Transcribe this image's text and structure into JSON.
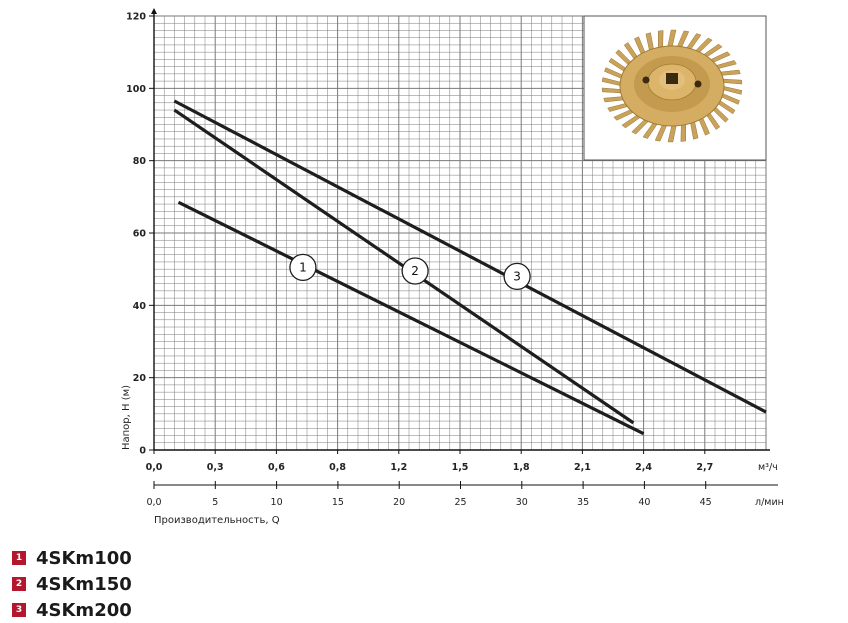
{
  "chart_data": {
    "type": "line",
    "ylabel": "Напор, H (м)",
    "xlabel": "Производительность, Q",
    "x_unit_top": "м³/ч",
    "x_unit_bottom": "л/мин",
    "ylim": [
      0,
      120
    ],
    "xlim": [
      0,
      3.0
    ],
    "y_ticks": [
      "0",
      "20",
      "40",
      "60",
      "80",
      "100",
      "120"
    ],
    "x_ticks_m3h": [
      "0,0",
      "0,3",
      "0,6",
      "0,8",
      "1,2",
      "1,5",
      "1,8",
      "2,1",
      "2,4",
      "2,7"
    ],
    "x_ticks_lmin": [
      "0,0",
      "5",
      "10",
      "15",
      "20",
      "25",
      "30",
      "35",
      "40",
      "45"
    ],
    "grid": true,
    "series": [
      {
        "name": "4SKm100",
        "marker": "1",
        "x": [
          0.12,
          2.4
        ],
        "y": [
          68.5,
          4.5
        ]
      },
      {
        "name": "4SKm150",
        "marker": "2",
        "x": [
          0.1,
          2.35
        ],
        "y": [
          94,
          7.5
        ]
      },
      {
        "name": "4SKm200",
        "marker": "3",
        "x": [
          0.1,
          3.0
        ],
        "y": [
          96.5,
          10.5
        ]
      }
    ],
    "marker_positions": [
      {
        "label": "1",
        "x": 0.73,
        "y": 50.5
      },
      {
        "label": "2",
        "x": 1.28,
        "y": 49.5
      },
      {
        "label": "3",
        "x": 1.78,
        "y": 48
      }
    ],
    "legend_placement": "bottom-left"
  },
  "legend": [
    {
      "num": "1",
      "label": "4SKm100"
    },
    {
      "num": "2",
      "label": "4SKm150"
    },
    {
      "num": "3",
      "label": "4SKm200"
    }
  ],
  "colors": {
    "legend_box": "#b3172d",
    "grid": "#7a7a7a",
    "curve": "#1e1e1e",
    "impeller": "#c9a35b"
  },
  "inset": {
    "icon": "impeller-icon"
  }
}
